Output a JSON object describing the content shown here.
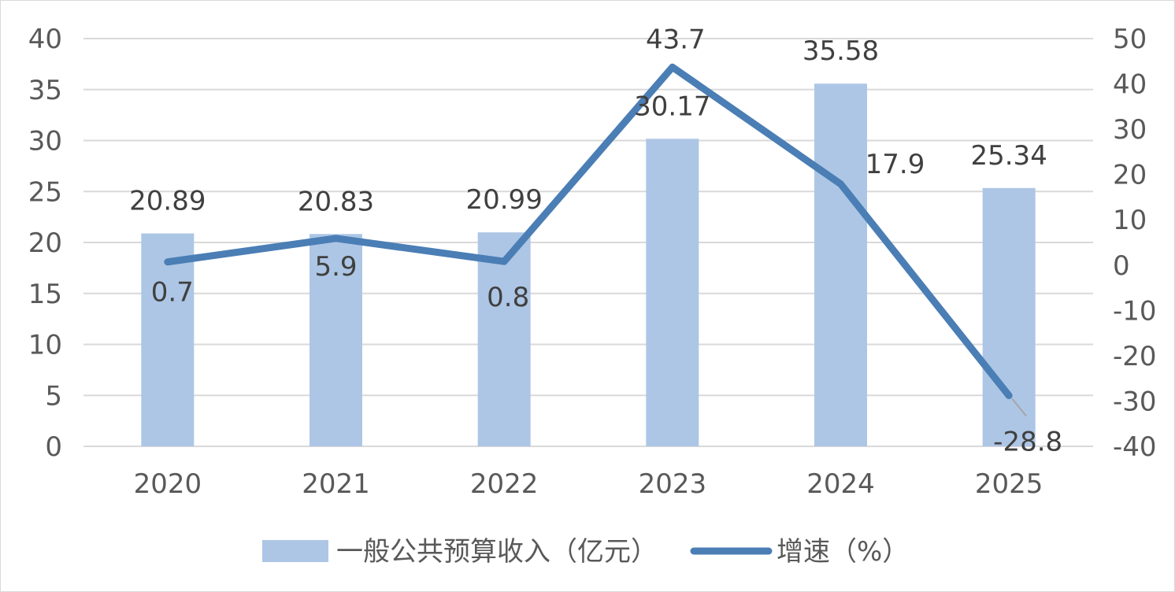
{
  "chart_data": {
    "type": "bar",
    "categories": [
      "2020",
      "2021",
      "2022",
      "2023",
      "2024",
      "2025"
    ],
    "series": [
      {
        "name": "一般公共预算收入（亿元）",
        "type": "bar",
        "axis": "left",
        "values": [
          20.89,
          20.83,
          20.99,
          30.17,
          35.58,
          25.34
        ],
        "labels": [
          "20.89",
          "20.83",
          "20.99",
          "30.17",
          "35.58",
          "25.34"
        ],
        "color": "#adc6e5"
      },
      {
        "name": "增速（%）",
        "type": "line",
        "axis": "right",
        "values": [
          0.7,
          5.9,
          0.8,
          43.7,
          17.9,
          -28.8
        ],
        "labels": [
          "0.7",
          "5.9",
          "0.8",
          "43.7",
          "17.9",
          "-28.8"
        ],
        "color": "#4a7eb5"
      }
    ],
    "y_left": {
      "min": 0,
      "max": 40,
      "step": 5,
      "ticks": [
        "0",
        "5",
        "10",
        "15",
        "20",
        "25",
        "30",
        "35",
        "40"
      ]
    },
    "y_right": {
      "min": -40,
      "max": 50,
      "step": 10,
      "ticks": [
        "-40",
        "-30",
        "-20",
        "-10",
        "0",
        "10",
        "20",
        "30",
        "40",
        "50"
      ]
    },
    "grid": true,
    "legend_position": "bottom",
    "gridline_color": "#d9d9d9",
    "axis_text_color": "#595959"
  }
}
